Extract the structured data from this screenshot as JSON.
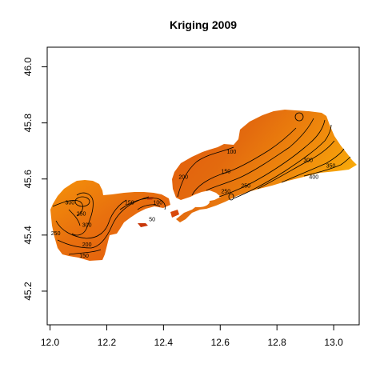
{
  "chart_data": {
    "type": "heatmap",
    "title": "Kriging 2009",
    "xlabel": "",
    "ylabel": "",
    "xlim": [
      11.99,
      13.09
    ],
    "ylim": [
      45.08,
      46.07
    ],
    "x_ticks": [
      12.0,
      12.2,
      12.4,
      12.6,
      12.8,
      13.0
    ],
    "x_tick_labels": [
      "12.0",
      "12.2",
      "12.4",
      "12.6",
      "12.8",
      "13.0"
    ],
    "y_ticks": [
      45.2,
      45.4,
      45.6,
      45.8,
      46.0
    ],
    "y_tick_labels": [
      "45.2",
      "45.4",
      "45.6",
      "45.8",
      "46.0"
    ],
    "grid": false,
    "legend": "none",
    "colors": {
      "low": "#c83a08",
      "mid": "#e8660c",
      "high": "#f8a80a",
      "contour": "#000000"
    },
    "contour_levels": [
      {
        "level": 100,
        "label": "100"
      },
      {
        "level": 150,
        "label": "150"
      },
      {
        "level": 200,
        "label": "200"
      },
      {
        "level": 250,
        "label": "250"
      },
      {
        "level": 300,
        "label": "300"
      },
      {
        "level": 350,
        "label": "350"
      },
      {
        "level": 400,
        "label": "400"
      }
    ],
    "contour_label_positions": [
      {
        "text": "300",
        "x": 12.07,
        "y": 45.51
      },
      {
        "text": "250",
        "x": 12.11,
        "y": 45.47
      },
      {
        "text": "300",
        "x": 12.13,
        "y": 45.43
      },
      {
        "text": "250",
        "x": 12.02,
        "y": 45.4
      },
      {
        "text": "200",
        "x": 12.13,
        "y": 45.36
      },
      {
        "text": "150",
        "x": 12.12,
        "y": 45.32
      },
      {
        "text": "150",
        "x": 12.28,
        "y": 45.51
      },
      {
        "text": "100",
        "x": 12.38,
        "y": 45.51
      },
      {
        "text": "50",
        "x": 12.36,
        "y": 45.45
      },
      {
        "text": "200",
        "x": 12.47,
        "y": 45.6
      },
      {
        "text": "100",
        "x": 12.64,
        "y": 45.69
      },
      {
        "text": "150",
        "x": 12.62,
        "y": 45.62
      },
      {
        "text": "250",
        "x": 12.69,
        "y": 45.57
      },
      {
        "text": "250",
        "x": 12.62,
        "y": 45.55
      },
      {
        "text": "300",
        "x": 12.91,
        "y": 45.66
      },
      {
        "text": "350",
        "x": 12.99,
        "y": 45.64
      },
      {
        "text": "400",
        "x": 12.93,
        "y": 45.6
      }
    ]
  }
}
